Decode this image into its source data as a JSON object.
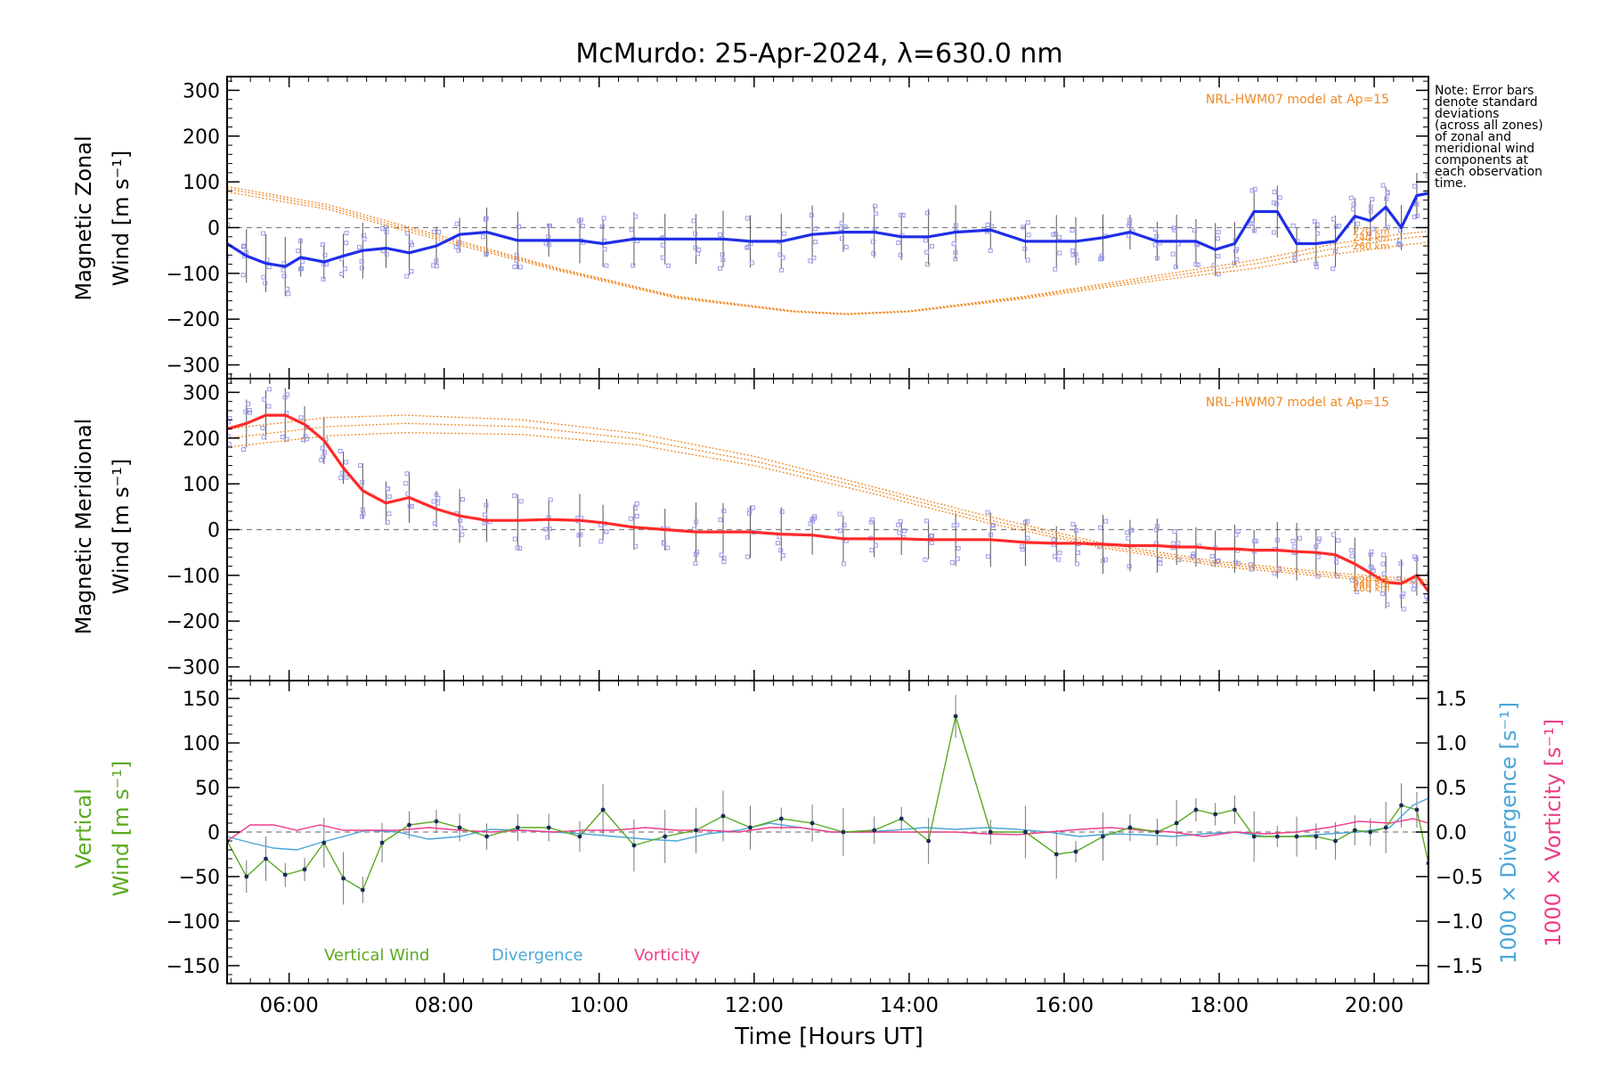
{
  "title": "McMurdo: 25-Apr-2024, λ=630.0 nm",
  "note": "Note: Error bars\ndenote standard\ndeviations\n(across all zones)\nof zonal and\nmeridional wind\ncomponents at\neach observation\ntime.",
  "colors": {
    "zonal": "#1f2ee8",
    "meridional": "#ff2a2a",
    "model": "#f08a24",
    "vertical": "#5aaa20",
    "divergence": "#4aa6d8",
    "vorticity": "#ee3d8a",
    "zone_points": "#9a9ae8",
    "dashed_zero": "#808080"
  },
  "x_axis": {
    "label": "Time [Hours UT]",
    "range": [
      5.2,
      20.7
    ],
    "ticks": [
      6,
      8,
      10,
      12,
      14,
      16,
      18,
      20
    ],
    "tick_labels": [
      "06:00",
      "08:00",
      "10:00",
      "12:00",
      "14:00",
      "16:00",
      "18:00",
      "20:00"
    ]
  },
  "chart_data": [
    {
      "type": "line",
      "panel": "zonal",
      "ylabel_line1": "Magnetic Zonal",
      "ylabel_line2": "Wind [m s⁻¹]",
      "ylim": [
        -330,
        330
      ],
      "yticks": [
        300,
        200,
        100,
        0,
        -100,
        -200,
        -300
      ],
      "ytick_labels": [
        "300",
        "200",
        "100",
        "0",
        "−100",
        "−200",
        "−300"
      ],
      "model_label": "NRL-HWM07 model at Ap=15",
      "model_heights": [
        "220 km",
        "240 km",
        "260 km"
      ],
      "series": [
        {
          "role": "zonal",
          "x": [
            5.2,
            5.45,
            5.7,
            5.95,
            6.15,
            6.45,
            6.7,
            6.95,
            7.25,
            7.55,
            7.9,
            8.2,
            8.55,
            8.95,
            9.35,
            9.75,
            10.05,
            10.45,
            10.85,
            11.25,
            11.6,
            11.95,
            12.35,
            12.75,
            13.15,
            13.55,
            13.9,
            14.25,
            14.6,
            15.05,
            15.5,
            15.9,
            16.15,
            16.5,
            16.85,
            17.2,
            17.45,
            17.7,
            17.95,
            18.2,
            18.45,
            18.75,
            19.0,
            19.25,
            19.5,
            19.75,
            19.95,
            20.15,
            20.35,
            20.55,
            20.7
          ],
          "y": [
            -35,
            -62,
            -78,
            -85,
            -65,
            -75,
            -62,
            -50,
            -45,
            -55,
            -40,
            -15,
            -10,
            -28,
            -28,
            -28,
            -35,
            -25,
            -25,
            -25,
            -25,
            -30,
            -30,
            -15,
            -10,
            -10,
            -20,
            -20,
            -10,
            -5,
            -30,
            -30,
            -30,
            -22,
            -10,
            -30,
            -30,
            -30,
            -48,
            -35,
            35,
            35,
            -35,
            -35,
            -30,
            25,
            15,
            45,
            0,
            70,
            75
          ]
        },
        {
          "role": "model",
          "name": "220 km",
          "x": [
            5.2,
            6.5,
            8.0,
            9.5,
            11.0,
            12.5,
            13.2,
            14.0,
            15.5,
            17.0,
            18.5,
            19.5,
            20.3,
            20.7
          ],
          "y": [
            90,
            50,
            -20,
            -90,
            -150,
            -182,
            -188,
            -182,
            -150,
            -110,
            -70,
            -35,
            -15,
            -8
          ]
        },
        {
          "role": "model",
          "name": "240 km",
          "x": [
            5.2,
            6.5,
            8.0,
            9.5,
            11.0,
            12.5,
            13.2,
            14.0,
            15.5,
            17.0,
            18.5,
            19.5,
            20.3,
            20.7
          ],
          "y": [
            85,
            45,
            -25,
            -92,
            -152,
            -183,
            -189,
            -183,
            -152,
            -115,
            -78,
            -45,
            -25,
            -18
          ]
        },
        {
          "role": "model",
          "name": "260 km",
          "x": [
            5.2,
            6.5,
            8.0,
            9.5,
            11.0,
            12.5,
            13.2,
            14.0,
            15.5,
            17.0,
            18.5,
            19.5,
            20.3,
            20.7
          ],
          "y": [
            78,
            40,
            -30,
            -95,
            -154,
            -184,
            -190,
            -184,
            -155,
            -120,
            -88,
            -58,
            -40,
            -32
          ]
        }
      ]
    },
    {
      "type": "line",
      "panel": "meridional",
      "ylabel_line1": "Magnetic Meridional",
      "ylabel_line2": "Wind [m s⁻¹]",
      "ylim": [
        -330,
        330
      ],
      "yticks": [
        300,
        200,
        100,
        0,
        -100,
        -200,
        -300
      ],
      "ytick_labels": [
        "300",
        "200",
        "100",
        "0",
        "−100",
        "−200",
        "−300"
      ],
      "model_label": "NRL-HWM07 model at Ap=15",
      "model_heights": [
        "220 km",
        "240 km",
        "260 km"
      ],
      "series": [
        {
          "role": "meridional",
          "x": [
            5.2,
            5.45,
            5.7,
            5.95,
            6.2,
            6.45,
            6.7,
            6.95,
            7.25,
            7.55,
            7.9,
            8.2,
            8.55,
            8.95,
            9.35,
            9.75,
            10.05,
            10.45,
            10.85,
            11.25,
            11.6,
            11.95,
            12.35,
            12.75,
            13.15,
            13.55,
            13.9,
            14.25,
            14.6,
            15.05,
            15.5,
            15.9,
            16.15,
            16.5,
            16.85,
            17.2,
            17.45,
            17.7,
            17.95,
            18.2,
            18.45,
            18.75,
            19.0,
            19.25,
            19.5,
            19.75,
            19.95,
            20.15,
            20.35,
            20.55,
            20.7
          ],
          "y": [
            220,
            232,
            250,
            250,
            230,
            195,
            135,
            85,
            58,
            70,
            45,
            30,
            20,
            20,
            22,
            20,
            15,
            5,
            0,
            -5,
            -5,
            -5,
            -10,
            -12,
            -20,
            -20,
            -20,
            -22,
            -22,
            -22,
            -28,
            -30,
            -30,
            -32,
            -35,
            -35,
            -38,
            -38,
            -42,
            -42,
            -45,
            -45,
            -48,
            -50,
            -55,
            -75,
            -95,
            -115,
            -118,
            -100,
            -135
          ]
        },
        {
          "role": "model",
          "name": "220 km",
          "x": [
            5.2,
            6.5,
            7.5,
            9.0,
            10.5,
            12.0,
            13.5,
            15.0,
            16.5,
            18.0,
            19.5,
            20.7
          ],
          "y": [
            220,
            245,
            250,
            240,
            210,
            160,
            95,
            30,
            -30,
            -70,
            -95,
            -110
          ]
        },
        {
          "role": "model",
          "name": "240 km",
          "x": [
            5.2,
            6.5,
            7.5,
            9.0,
            10.5,
            12.0,
            13.5,
            15.0,
            16.5,
            18.0,
            19.5,
            20.7
          ],
          "y": [
            200,
            225,
            232,
            225,
            198,
            150,
            88,
            22,
            -35,
            -75,
            -100,
            -115
          ]
        },
        {
          "role": "model",
          "name": "260 km",
          "x": [
            5.2,
            6.5,
            7.5,
            9.0,
            10.5,
            12.0,
            13.5,
            15.0,
            16.5,
            18.0,
            19.5,
            20.7
          ],
          "y": [
            180,
            205,
            212,
            208,
            185,
            140,
            80,
            15,
            -40,
            -80,
            -105,
            -120
          ]
        }
      ]
    },
    {
      "type": "line",
      "panel": "vertical",
      "ylabel_line1": "Vertical",
      "ylabel_line2": "Wind [m s⁻¹]",
      "ylim": [
        -170,
        170
      ],
      "yticks": [
        150,
        100,
        50,
        0,
        -50,
        -100,
        -150
      ],
      "ytick_labels": [
        "150",
        "100",
        "50",
        "0",
        "−50",
        "−100",
        "−150"
      ],
      "y2lim": [
        -1.7,
        1.7
      ],
      "y2ticks": [
        1.5,
        1.0,
        0.5,
        0.0,
        -0.5,
        -1.0,
        -1.5
      ],
      "y2tick_labels": [
        "1.5",
        "1.0",
        "0.5",
        "0.0",
        "−0.5",
        "−1.0",
        "−1.5"
      ],
      "y2label_divergence": "1000 × Divergence [s⁻¹]",
      "y2label_vorticity": "1000 × Vorticity [s⁻¹]",
      "legend": [
        "Vertical Wind",
        "Divergence",
        "Vorticity"
      ],
      "series": [
        {
          "role": "vertical",
          "name": "Vertical Wind",
          "x": [
            5.2,
            5.45,
            5.7,
            5.95,
            6.2,
            6.45,
            6.7,
            6.95,
            7.2,
            7.55,
            7.9,
            8.2,
            8.55,
            8.95,
            9.35,
            9.75,
            10.05,
            10.45,
            10.85,
            11.25,
            11.6,
            11.95,
            12.35,
            12.75,
            13.15,
            13.55,
            13.9,
            14.25,
            14.6,
            15.05,
            15.5,
            15.9,
            16.15,
            16.5,
            16.85,
            17.2,
            17.45,
            17.7,
            17.95,
            18.2,
            18.45,
            18.75,
            19.0,
            19.25,
            19.5,
            19.75,
            19.95,
            20.15,
            20.35,
            20.55,
            20.7
          ],
          "y": [
            -10,
            -50,
            -30,
            -48,
            -42,
            -12,
            -52,
            -65,
            -12,
            8,
            12,
            5,
            -5,
            5,
            5,
            -5,
            25,
            -15,
            -5,
            2,
            18,
            5,
            15,
            10,
            0,
            2,
            15,
            -10,
            130,
            0,
            0,
            -25,
            -22,
            -5,
            5,
            0,
            10,
            25,
            20,
            25,
            -5,
            -5,
            -5,
            -5,
            -10,
            2,
            0,
            5,
            30,
            25,
            -35
          ]
        },
        {
          "role": "divergence",
          "name": "Divergence",
          "x": [
            5.2,
            5.5,
            5.8,
            6.1,
            6.4,
            6.7,
            7.0,
            7.4,
            7.8,
            8.2,
            8.6,
            9.0,
            9.4,
            9.8,
            10.2,
            10.6,
            11.0,
            11.4,
            11.8,
            12.2,
            12.6,
            13.0,
            13.4,
            13.8,
            14.2,
            14.6,
            15.0,
            15.4,
            15.8,
            16.2,
            16.6,
            17.0,
            17.4,
            17.8,
            18.2,
            18.6,
            19.0,
            19.4,
            19.8,
            20.2,
            20.5,
            20.7
          ],
          "y": [
            -0.05,
            -0.12,
            -0.18,
            -0.2,
            -0.12,
            -0.05,
            0.02,
            0.0,
            -0.08,
            -0.05,
            0.03,
            0.02,
            0.0,
            -0.02,
            -0.05,
            -0.08,
            -0.1,
            -0.02,
            0.02,
            0.1,
            0.05,
            0.0,
            0.0,
            0.02,
            0.05,
            0.03,
            0.05,
            0.03,
            0.0,
            -0.05,
            -0.02,
            -0.03,
            -0.05,
            -0.02,
            0.0,
            -0.05,
            -0.05,
            -0.02,
            0.0,
            0.05,
            0.3,
            0.38
          ]
        },
        {
          "role": "vorticity",
          "name": "Vorticity",
          "x": [
            5.2,
            5.5,
            5.8,
            6.1,
            6.4,
            6.7,
            7.0,
            7.4,
            7.8,
            8.2,
            8.6,
            9.0,
            9.4,
            9.8,
            10.2,
            10.6,
            11.0,
            11.4,
            11.8,
            12.2,
            12.6,
            13.0,
            13.4,
            13.8,
            14.2,
            14.6,
            15.0,
            15.4,
            15.8,
            16.2,
            16.6,
            17.0,
            17.4,
            17.8,
            18.2,
            18.6,
            19.0,
            19.4,
            19.8,
            20.2,
            20.5,
            20.7
          ],
          "y": [
            -0.1,
            0.08,
            0.08,
            0.02,
            0.08,
            0.02,
            0.02,
            0.02,
            0.05,
            0.02,
            0.0,
            0.02,
            0.0,
            0.02,
            0.02,
            0.05,
            0.02,
            0.02,
            0.0,
            0.05,
            0.05,
            0.0,
            0.0,
            0.0,
            0.0,
            0.0,
            -0.02,
            -0.03,
            0.0,
            0.03,
            0.05,
            0.02,
            0.0,
            -0.05,
            0.0,
            -0.02,
            0.0,
            0.05,
            0.12,
            0.1,
            0.15,
            0.1
          ]
        }
      ]
    }
  ]
}
